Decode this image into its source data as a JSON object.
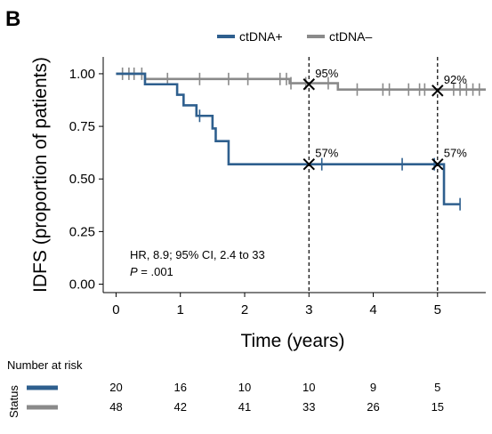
{
  "panel_label": "B",
  "chart_data": {
    "type": "line",
    "subtype": "kaplan-meier",
    "xlabel": "Time (years)",
    "ylabel": "IDFS (proportion of patients)",
    "xlim": [
      -0.2,
      5.75
    ],
    "ylim": [
      -0.04,
      1.08
    ],
    "x_ticks": [
      0,
      1,
      2,
      3,
      4,
      5
    ],
    "y_ticks": [
      0.0,
      0.25,
      0.5,
      0.75,
      1.0
    ],
    "y_tick_labels": [
      "0.00",
      "0.25",
      "0.50",
      "0.75",
      "1.00"
    ],
    "grid": false,
    "legend_position": "top",
    "series": [
      {
        "name": "ctDNA+",
        "color": "#2e5f8e",
        "steps": [
          [
            0,
            1.0
          ],
          [
            0.45,
            0.95
          ],
          [
            0.95,
            0.9
          ],
          [
            1.05,
            0.85
          ],
          [
            1.25,
            0.8
          ],
          [
            1.5,
            0.74
          ],
          [
            1.55,
            0.68
          ],
          [
            1.75,
            0.57
          ],
          [
            5.1,
            0.38
          ],
          [
            5.35,
            0.38
          ]
        ],
        "censored": [
          [
            1.3,
            0.8
          ],
          [
            3.2,
            0.57
          ],
          [
            4.45,
            0.57
          ],
          [
            4.95,
            0.57
          ],
          [
            5.35,
            0.38
          ]
        ]
      },
      {
        "name": "ctDNA–",
        "color": "#8a8a8a",
        "steps": [
          [
            0,
            1.0
          ],
          [
            0.45,
            0.975
          ],
          [
            2.7,
            0.955
          ],
          [
            3.45,
            0.925
          ],
          [
            5.75,
            0.925
          ]
        ],
        "censored": [
          [
            0.1,
            1.0
          ],
          [
            0.2,
            1.0
          ],
          [
            0.28,
            1.0
          ],
          [
            0.4,
            1.0
          ],
          [
            0.8,
            0.975
          ],
          [
            1.3,
            0.975
          ],
          [
            1.75,
            0.975
          ],
          [
            2.05,
            0.975
          ],
          [
            2.55,
            0.975
          ],
          [
            2.65,
            0.975
          ],
          [
            2.72,
            0.955
          ],
          [
            2.95,
            0.955
          ],
          [
            3.3,
            0.955
          ],
          [
            3.75,
            0.925
          ],
          [
            4.15,
            0.925
          ],
          [
            4.25,
            0.925
          ],
          [
            4.55,
            0.925
          ],
          [
            4.72,
            0.925
          ],
          [
            4.8,
            0.925
          ],
          [
            5.25,
            0.925
          ],
          [
            5.35,
            0.925
          ],
          [
            5.45,
            0.925
          ],
          [
            5.55,
            0.925
          ],
          [
            5.65,
            0.925
          ]
        ]
      }
    ],
    "reference_lines": [
      3,
      5
    ],
    "markers": [
      {
        "x": 3,
        "y": 0.95,
        "label": "95%"
      },
      {
        "x": 5,
        "y": 0.92,
        "label": "92%"
      },
      {
        "x": 3,
        "y": 0.57,
        "label": "57%"
      },
      {
        "x": 5,
        "y": 0.57,
        "label": "57%"
      }
    ],
    "stats": {
      "line1": "HR, 8.9; 95% CI, 2.4 to 33",
      "line2_p": "P",
      "line2_rest": " = .001"
    },
    "risk_table": {
      "title": "Number at risk",
      "row_label": "Status",
      "times": [
        0,
        1,
        2,
        3,
        4,
        5
      ],
      "rows": [
        {
          "color": "#2e5f8e",
          "values": [
            "20",
            "16",
            "10",
            "10",
            "9",
            "5"
          ]
        },
        {
          "color": "#8a8a8a",
          "values": [
            "48",
            "42",
            "41",
            "33",
            "26",
            "15"
          ]
        }
      ]
    }
  }
}
